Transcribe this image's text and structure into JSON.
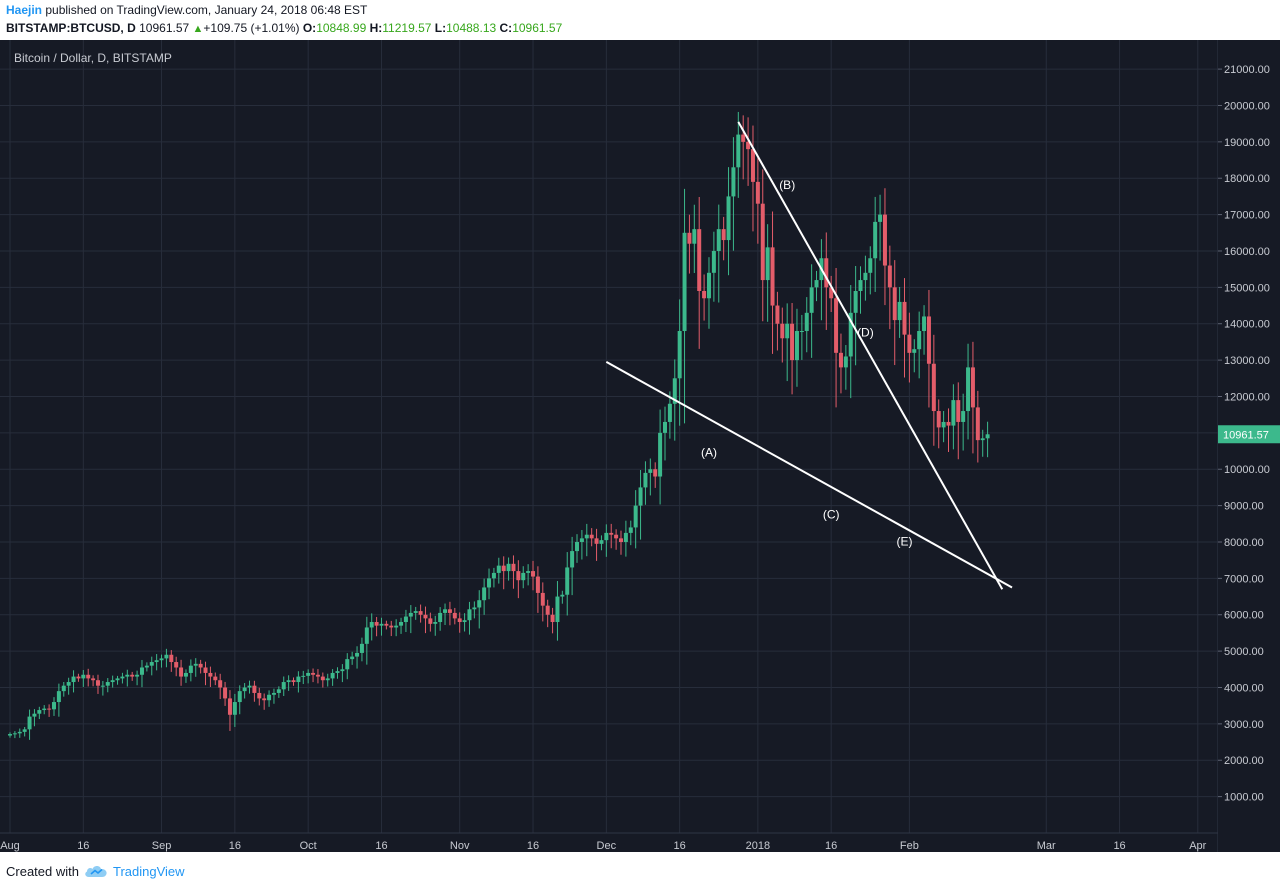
{
  "header": {
    "author": "Haejin",
    "published_text": "published on TradingView.com, January 24, 2018 06:48 EST",
    "symbol": "BITSTAMP:BTCUSD, D",
    "last": "10961.57",
    "change": "+109.75 (+1.01%)",
    "open_label": "O:",
    "open": "10848.99",
    "high_label": "H:",
    "high": "11219.57",
    "low_label": "L:",
    "low": "10488.13",
    "close_label": "C:",
    "close": "10961.57"
  },
  "footer": {
    "created_with": "Created with",
    "brand": "TradingView"
  },
  "colors": {
    "background": "#161a25",
    "grid": "#272d3b",
    "up": "#3cb98c",
    "down": "#e35d6a",
    "price_tag": "#3cb98c",
    "lines": "#ffffff"
  },
  "chart_data": {
    "type": "candlestick",
    "title": "Bitcoin / Dollar, D, BITSTAMP",
    "ylim": [
      0,
      21800
    ],
    "y_ticks": [
      "1000.00",
      "2000.00",
      "3000.00",
      "4000.00",
      "5000.00",
      "6000.00",
      "7000.00",
      "8000.00",
      "9000.00",
      "10000.00",
      "11000.00",
      "12000.00",
      "13000.00",
      "14000.00",
      "15000.00",
      "16000.00",
      "17000.00",
      "18000.00",
      "19000.00",
      "20000.00",
      "21000.00"
    ],
    "x_range": [
      "2017-08-01",
      "2018-04-08"
    ],
    "x_ticks": [
      {
        "date": "2017-08-01",
        "label": "Aug"
      },
      {
        "date": "2017-08-16",
        "label": "16"
      },
      {
        "date": "2017-09-01",
        "label": "Sep"
      },
      {
        "date": "2017-09-16",
        "label": "16"
      },
      {
        "date": "2017-10-01",
        "label": "Oct"
      },
      {
        "date": "2017-10-16",
        "label": "16"
      },
      {
        "date": "2017-11-01",
        "label": "Nov"
      },
      {
        "date": "2017-11-16",
        "label": "16"
      },
      {
        "date": "2017-12-01",
        "label": "Dec"
      },
      {
        "date": "2017-12-16",
        "label": "16"
      },
      {
        "date": "2018-01-01",
        "label": "2018"
      },
      {
        "date": "2018-01-16",
        "label": "16"
      },
      {
        "date": "2018-02-01",
        "label": "Feb"
      },
      {
        "date": "2018-03-01",
        "label": "Mar"
      },
      {
        "date": "2018-03-16",
        "label": "16"
      },
      {
        "date": "2018-04-01",
        "label": "Apr"
      }
    ],
    "last_price": "10961.57",
    "series": [
      {
        "first_date": "2017-08-01",
        "close": [
          2720,
          2740,
          2780,
          2850,
          3200,
          3280,
          3380,
          3420,
          3400,
          3600,
          3900,
          4050,
          4150,
          4300,
          4250,
          4350,
          4250,
          4200,
          4050,
          4050,
          4150,
          4200,
          4250,
          4300,
          4350,
          4300,
          4350,
          4550,
          4600,
          4700,
          4750,
          4800,
          4900,
          4700,
          4550,
          4300,
          4400,
          4600,
          4650,
          4550,
          4400,
          4300,
          4200,
          4000,
          3700,
          3250,
          3600,
          3900,
          4000,
          4050,
          3850,
          3700,
          3650,
          3800,
          3850,
          3950,
          4150,
          4200,
          4150,
          4300,
          4320,
          4400,
          4350,
          4300,
          4200,
          4250,
          4400,
          4450,
          4500,
          4780,
          4850,
          4950,
          5200,
          5650,
          5800,
          5700,
          5750,
          5700,
          5650,
          5700,
          5800,
          5950,
          6050,
          6100,
          6000,
          5900,
          5750,
          5800,
          6050,
          6150,
          6050,
          5900,
          5800,
          5850,
          6150,
          6200,
          6400,
          6750,
          7000,
          7150,
          7350,
          7200,
          7400,
          7200,
          6950,
          7150,
          7200,
          7050,
          6600,
          6250,
          6000,
          5800,
          6500,
          6550,
          7300,
          7750,
          8000,
          8100,
          8200,
          8100,
          7950,
          8050,
          8250,
          8200,
          8100,
          8000,
          8250,
          8400,
          9000,
          9500,
          9900,
          10000,
          9800,
          11000,
          11300,
          11800,
          12500,
          13800,
          16500,
          16200,
          16600,
          14900,
          14700,
          15400,
          16000,
          16600,
          16300,
          17500,
          18300,
          19200,
          19000,
          18800,
          17900,
          17300,
          15200,
          16100,
          14500,
          14000,
          13600,
          14000,
          13000,
          13800,
          13800,
          14300,
          15000,
          15200,
          15800,
          15000,
          14700,
          13200,
          12800,
          13100,
          14300,
          14900,
          15200,
          15400,
          15800,
          16800,
          17000,
          15600,
          15000,
          14100,
          14600,
          13700,
          13200,
          13300,
          13800,
          14200,
          12900,
          11600,
          11150,
          11300,
          11200,
          11900,
          11300,
          11600,
          12800,
          11700,
          10800,
          10850,
          10961
        ]
      }
    ],
    "annotations": [
      {
        "text": "(A)",
        "date": "2017-12-22",
        "price": 10350
      },
      {
        "text": "(B)",
        "date": "2018-01-07",
        "price": 17700
      },
      {
        "text": "(C)",
        "date": "2018-01-16",
        "price": 8650
      },
      {
        "text": "(D)",
        "date": "2018-01-23",
        "price": 13650
      },
      {
        "text": "(E)",
        "date": "2018-01-31",
        "price": 7900
      }
    ],
    "trendlines": [
      {
        "name": "lower",
        "from": {
          "date": "2017-12-01",
          "price": 12950
        },
        "to": {
          "date": "2018-02-22",
          "price": 6750
        }
      },
      {
        "name": "upper",
        "from": {
          "date": "2017-12-28",
          "price": 19550
        },
        "to": {
          "date": "2018-02-20",
          "price": 6700
        }
      }
    ]
  }
}
